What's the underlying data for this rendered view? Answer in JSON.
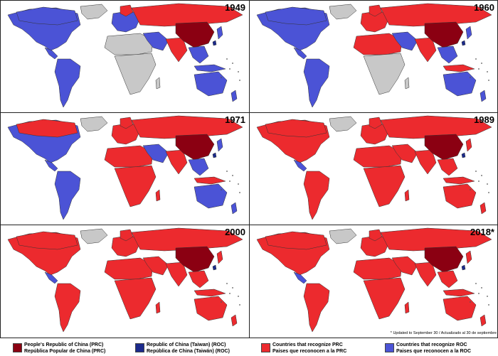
{
  "colors": {
    "prc": "#8b0012",
    "roc": "#1b2a8c",
    "recognize_prc": "#ec2a2e",
    "recognize_roc": "#4b53d6",
    "neutral": "#c8c8c8",
    "border": "#333333"
  },
  "panels": [
    {
      "year": "1949",
      "scheme": "roc-heavy"
    },
    {
      "year": "1960",
      "scheme": "mixed"
    },
    {
      "year": "1971",
      "scheme": "shift"
    },
    {
      "year": "1989",
      "scheme": "prc-heavy"
    },
    {
      "year": "2000",
      "scheme": "prc-heavy"
    },
    {
      "year": "2018*",
      "scheme": "prc-heavy"
    }
  ],
  "footnote": "* Updated to September 30 / Actualizado al 30 de septiembre",
  "legend": [
    {
      "color_key": "prc",
      "line1": "People's Republic of China (PRC)",
      "line2": "República Popular de China (PRC)"
    },
    {
      "color_key": "roc",
      "line1": "Republic of China (Taiwan) (ROC)",
      "line2": "República de China (Taiwán) (ROC)"
    },
    {
      "color_key": "recognize_prc",
      "line1": "Countries that recognize PRC",
      "line2": "Paises que reconocen a la PRC"
    },
    {
      "color_key": "recognize_roc",
      "line1": "Countries that recognize ROC",
      "line2": "Paises que reconocen a la ROC"
    }
  ]
}
